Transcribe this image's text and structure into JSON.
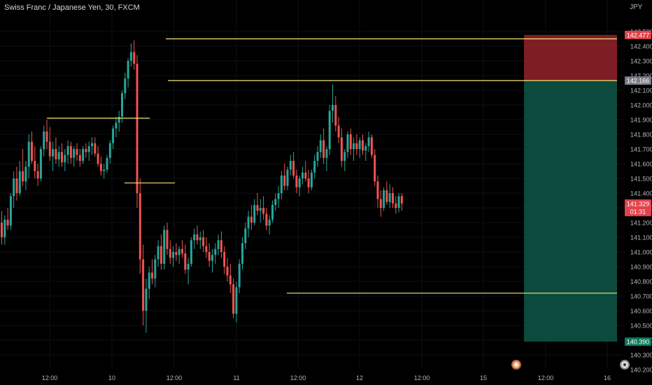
{
  "header": {
    "symbol_title": "Swiss Franc / Japanese Yen, 30, FXCM",
    "currency": "JPY"
  },
  "colors": {
    "background": "#000000",
    "up": "#26a69a",
    "down": "#ef5350",
    "level_line": "#f5e67a",
    "stop_zone": "#7f1d24",
    "target_zone": "#0b4a3c",
    "stop_tag": "#e0434b",
    "target_tag": "#0f7a5c",
    "entry_tag": "#787b86",
    "price_tag": "#e0434b"
  },
  "chart_data": {
    "type": "candlestick",
    "y_axis": {
      "ticks": [
        "142.500",
        "142.400",
        "142.300",
        "142.200",
        "142.100",
        "142.000",
        "141.900",
        "141.800",
        "141.700",
        "141.600",
        "141.500",
        "141.400",
        "141.300",
        "141.200",
        "141.100",
        "141.000",
        "140.900",
        "140.800",
        "140.700",
        "140.600",
        "140.500",
        "140.400",
        "140.300",
        "140.200"
      ],
      "range": [
        140.2,
        142.55
      ]
    },
    "x_axis": {
      "tick_labels": [
        "12:00",
        "10",
        "12:00",
        "11",
        "12:00",
        "12",
        "12:00",
        "15",
        "12:00",
        "16"
      ]
    },
    "price_labels": {
      "stop": "142.477",
      "entry": "142.166",
      "current": "141.329",
      "countdown": "01:31",
      "target": "140.390"
    },
    "levels": [
      {
        "price": 142.45,
        "from": 237,
        "to": 882
      },
      {
        "price": 142.166,
        "from": 240,
        "to": 882
      },
      {
        "price": 141.91,
        "from": 67,
        "to": 214
      },
      {
        "price": 141.47,
        "from": 178,
        "to": 250
      },
      {
        "price": 140.72,
        "from": 410,
        "to": 882
      }
    ],
    "position": {
      "type": "short",
      "stop": 142.477,
      "entry": 142.166,
      "target": 140.39
    },
    "candles": [
      [
        141.2,
        141.28,
        141.05,
        141.1
      ],
      [
        141.1,
        141.25,
        141.05,
        141.22
      ],
      [
        141.22,
        141.3,
        141.15,
        141.18
      ],
      [
        141.18,
        141.4,
        141.15,
        141.38
      ],
      [
        141.38,
        141.55,
        141.3,
        141.5
      ],
      [
        141.5,
        141.58,
        141.35,
        141.4
      ],
      [
        141.4,
        141.62,
        141.38,
        141.55
      ],
      [
        141.55,
        141.7,
        141.45,
        141.48
      ],
      [
        141.48,
        141.62,
        141.42,
        141.58
      ],
      [
        141.58,
        141.8,
        141.5,
        141.75
      ],
      [
        141.75,
        141.82,
        141.6,
        141.62
      ],
      [
        141.62,
        141.72,
        141.5,
        141.55
      ],
      [
        141.55,
        141.6,
        141.45,
        141.5
      ],
      [
        141.5,
        141.72,
        141.48,
        141.7
      ],
      [
        141.7,
        141.86,
        141.65,
        141.82
      ],
      [
        141.82,
        141.9,
        141.7,
        141.75
      ],
      [
        141.75,
        141.85,
        141.62,
        141.65
      ],
      [
        141.65,
        141.75,
        141.55,
        141.7
      ],
      [
        141.7,
        141.78,
        141.6,
        141.63
      ],
      [
        141.63,
        141.72,
        141.58,
        141.68
      ],
      [
        141.68,
        141.74,
        141.58,
        141.61
      ],
      [
        141.61,
        141.7,
        141.55,
        141.66
      ],
      [
        141.66,
        141.76,
        141.6,
        141.72
      ],
      [
        141.72,
        141.75,
        141.6,
        141.64
      ],
      [
        141.64,
        141.72,
        141.58,
        141.7
      ],
      [
        141.7,
        141.74,
        141.62,
        141.66
      ],
      [
        141.66,
        141.7,
        141.58,
        141.62
      ],
      [
        141.62,
        141.72,
        141.6,
        141.7
      ],
      [
        141.7,
        141.74,
        141.64,
        141.68
      ],
      [
        141.68,
        141.75,
        141.62,
        141.72
      ],
      [
        141.72,
        141.78,
        141.66,
        141.74
      ],
      [
        141.74,
        141.78,
        141.65,
        141.67
      ],
      [
        141.67,
        141.72,
        141.58,
        141.6
      ],
      [
        141.6,
        141.65,
        141.52,
        141.55
      ],
      [
        141.55,
        141.6,
        141.5,
        141.56
      ],
      [
        141.56,
        141.66,
        141.54,
        141.64
      ],
      [
        141.64,
        141.76,
        141.6,
        141.74
      ],
      [
        141.74,
        141.86,
        141.7,
        141.84
      ],
      [
        141.84,
        141.92,
        141.78,
        141.88
      ],
      [
        141.88,
        141.96,
        141.82,
        141.92
      ],
      [
        141.92,
        142.1,
        141.88,
        142.08
      ],
      [
        142.08,
        142.22,
        142.04,
        142.18
      ],
      [
        142.18,
        142.32,
        142.12,
        142.3
      ],
      [
        142.3,
        142.42,
        142.26,
        142.36
      ],
      [
        142.36,
        142.44,
        142.24,
        142.28
      ],
      [
        142.28,
        142.34,
        141.3,
        141.4
      ],
      [
        141.4,
        141.5,
        140.85,
        140.95
      ],
      [
        140.95,
        141.05,
        140.5,
        140.6
      ],
      [
        140.6,
        140.82,
        140.45,
        140.75
      ],
      [
        140.75,
        140.9,
        140.68,
        140.86
      ],
      [
        140.86,
        140.95,
        140.78,
        140.82
      ],
      [
        140.82,
        140.98,
        140.76,
        140.95
      ],
      [
        140.95,
        141.08,
        140.9,
        141.04
      ],
      [
        141.04,
        141.12,
        140.88,
        140.92
      ],
      [
        140.92,
        141.18,
        140.88,
        141.15
      ],
      [
        141.15,
        141.2,
        140.98,
        141.02
      ],
      [
        141.02,
        141.08,
        140.92,
        140.96
      ],
      [
        140.96,
        141.04,
        140.9,
        141.0
      ],
      [
        141.0,
        141.06,
        140.94,
        140.98
      ],
      [
        140.98,
        141.04,
        140.92,
        141.02
      ],
      [
        141.02,
        141.08,
        140.96,
        140.99
      ],
      [
        140.99,
        141.05,
        140.85,
        140.88
      ],
      [
        140.88,
        140.96,
        140.78,
        140.92
      ],
      [
        140.92,
        141.1,
        140.9,
        141.08
      ],
      [
        141.08,
        141.16,
        141.02,
        141.12
      ],
      [
        141.12,
        141.18,
        141.05,
        141.08
      ],
      [
        141.08,
        141.14,
        141.02,
        141.1
      ],
      [
        141.1,
        141.15,
        141.0,
        141.04
      ],
      [
        141.04,
        141.1,
        140.96,
        141.0
      ],
      [
        141.0,
        141.06,
        140.9,
        140.94
      ],
      [
        140.94,
        141.02,
        140.86,
        140.98
      ],
      [
        140.98,
        141.06,
        140.92,
        141.02
      ],
      [
        141.02,
        141.12,
        140.98,
        141.08
      ],
      [
        141.08,
        141.14,
        140.96,
        141.0
      ],
      [
        141.0,
        141.04,
        140.85,
        140.9
      ],
      [
        140.9,
        140.96,
        140.8,
        140.84
      ],
      [
        140.84,
        140.92,
        140.72,
        140.78
      ],
      [
        140.78,
        140.82,
        140.55,
        140.58
      ],
      [
        140.58,
        140.8,
        140.52,
        140.76
      ],
      [
        140.76,
        140.95,
        140.72,
        140.92
      ],
      [
        140.92,
        141.1,
        140.88,
        141.06
      ],
      [
        141.06,
        141.2,
        141.02,
        141.16
      ],
      [
        141.16,
        141.28,
        141.1,
        141.24
      ],
      [
        141.24,
        141.32,
        141.15,
        141.2
      ],
      [
        141.2,
        141.36,
        141.18,
        141.32
      ],
      [
        141.32,
        141.4,
        141.25,
        141.28
      ],
      [
        141.28,
        141.36,
        141.2,
        141.3
      ],
      [
        141.3,
        141.38,
        141.22,
        141.26
      ],
      [
        141.26,
        141.3,
        141.15,
        141.18
      ],
      [
        141.18,
        141.25,
        141.12,
        141.22
      ],
      [
        141.22,
        141.35,
        141.2,
        141.32
      ],
      [
        141.32,
        141.4,
        141.28,
        141.36
      ],
      [
        141.36,
        141.45,
        141.3,
        141.4
      ],
      [
        141.4,
        141.55,
        141.36,
        141.52
      ],
      [
        141.52,
        141.6,
        141.42,
        141.45
      ],
      [
        141.45,
        141.58,
        141.42,
        141.56
      ],
      [
        141.56,
        141.66,
        141.52,
        141.62
      ],
      [
        141.62,
        141.68,
        141.5,
        141.52
      ],
      [
        141.52,
        141.56,
        141.4,
        141.44
      ],
      [
        141.44,
        141.52,
        141.38,
        141.5
      ],
      [
        141.5,
        141.58,
        141.46,
        141.54
      ],
      [
        141.54,
        141.62,
        141.48,
        141.5
      ],
      [
        141.5,
        141.56,
        141.4,
        141.44
      ],
      [
        141.44,
        141.56,
        141.42,
        141.54
      ],
      [
        141.54,
        141.66,
        141.5,
        141.62
      ],
      [
        141.62,
        141.72,
        141.58,
        141.68
      ],
      [
        141.68,
        141.8,
        141.64,
        141.76
      ],
      [
        141.76,
        141.84,
        141.6,
        141.64
      ],
      [
        141.64,
        141.72,
        141.55,
        141.7
      ],
      [
        141.7,
        142.0,
        141.66,
        141.96
      ],
      [
        141.96,
        142.14,
        141.88,
        142.0
      ],
      [
        142.0,
        142.06,
        141.82,
        141.86
      ],
      [
        141.86,
        141.92,
        141.74,
        141.78
      ],
      [
        141.78,
        141.84,
        141.58,
        141.62
      ],
      [
        141.62,
        141.7,
        141.55,
        141.68
      ],
      [
        141.68,
        141.82,
        141.64,
        141.8
      ],
      [
        141.8,
        141.84,
        141.66,
        141.7
      ],
      [
        141.7,
        141.78,
        141.62,
        141.74
      ],
      [
        141.74,
        141.8,
        141.66,
        141.7
      ],
      [
        141.7,
        141.78,
        141.64,
        141.76
      ],
      [
        141.76,
        141.8,
        141.66,
        141.69
      ],
      [
        141.69,
        141.74,
        141.62,
        141.72
      ],
      [
        141.72,
        141.82,
        141.68,
        141.78
      ],
      [
        141.78,
        141.8,
        141.64,
        141.66
      ],
      [
        141.66,
        141.7,
        141.45,
        141.48
      ],
      [
        141.48,
        141.52,
        141.3,
        141.36
      ],
      [
        141.36,
        141.42,
        141.24,
        141.3
      ],
      [
        141.3,
        141.44,
        141.28,
        141.42
      ],
      [
        141.42,
        141.48,
        141.32,
        141.34
      ],
      [
        141.34,
        141.46,
        141.3,
        141.4
      ],
      [
        141.4,
        141.44,
        141.3,
        141.33
      ],
      [
        141.33,
        141.38,
        141.26,
        141.3
      ],
      [
        141.3,
        141.4,
        141.27,
        141.38
      ],
      [
        141.38,
        141.4,
        141.28,
        141.33
      ]
    ]
  }
}
